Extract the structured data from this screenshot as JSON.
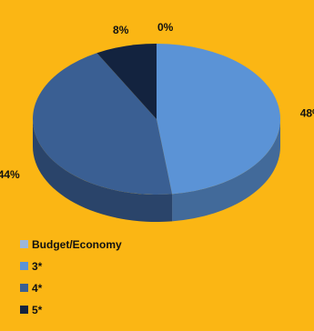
{
  "chart_data": {
    "type": "pie",
    "three_d": true,
    "start_at": "top",
    "direction": "clockwise",
    "legend_position": "bottom-left",
    "categories": [
      "3*",
      "4*",
      "5*",
      "Budget/Economy"
    ],
    "values": [
      48,
      44,
      8,
      0
    ],
    "labels": [
      "48%",
      "44%",
      "8%",
      "0%"
    ],
    "colors": [
      "#5B93D6",
      "#3A5F93",
      "#13233F",
      "#9CB6D9"
    ],
    "legend": [
      {
        "label": "Budget/Economy",
        "color": "#9CB6D9"
      },
      {
        "label": "3*",
        "color": "#5B93D6"
      },
      {
        "label": "4*",
        "color": "#3A5F93"
      },
      {
        "label": "5*",
        "color": "#13233F"
      }
    ]
  }
}
